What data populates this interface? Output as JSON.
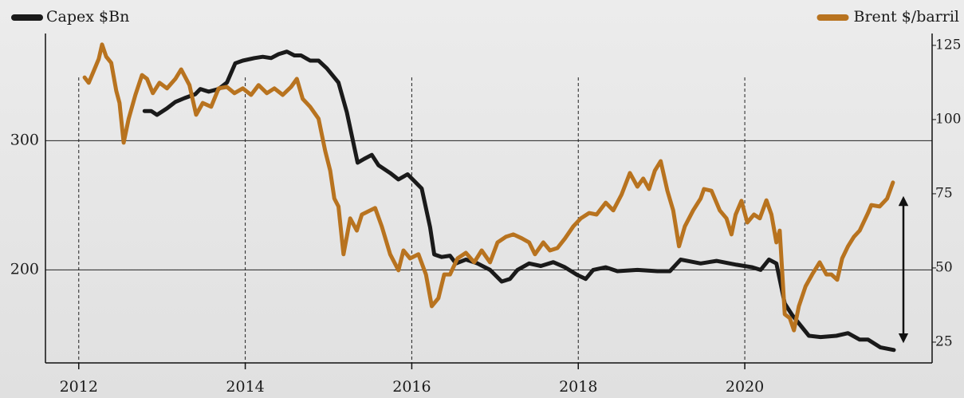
{
  "chart_data": {
    "type": "line",
    "series": [
      {
        "name": "Capex $Bn",
        "color": "#1a1a1a",
        "axis": "y",
        "x": [
          2012.79,
          2012.87,
          2012.94,
          2013.06,
          2013.16,
          2013.27,
          2013.4,
          2013.46,
          2013.56,
          2013.68,
          2013.78,
          2013.88,
          2013.97,
          2014.11,
          2014.21,
          2014.31,
          2014.4,
          2014.5,
          2014.59,
          2014.67,
          2014.78,
          2014.88,
          2014.98,
          2015.12,
          2015.22,
          2015.35,
          2015.43,
          2015.52,
          2015.6,
          2015.74,
          2015.84,
          2015.95,
          2016.12,
          2016.22,
          2016.27,
          2016.36,
          2016.46,
          2016.53,
          2016.65,
          2016.79,
          2016.94,
          2017.08,
          2017.18,
          2017.27,
          2017.41,
          2017.55,
          2017.7,
          2017.84,
          2017.99,
          2018.09,
          2018.18,
          2018.33,
          2018.47,
          2018.71,
          2018.95,
          2019.1,
          2019.23,
          2019.47,
          2019.66,
          2019.9,
          2020.09,
          2020.19,
          2020.29,
          2020.38,
          2020.48,
          2020.57,
          2020.67,
          2020.77,
          2020.91,
          2021.1,
          2021.24,
          2021.38,
          2021.48,
          2021.63,
          2021.79
        ],
        "values": [
          323,
          323,
          320,
          325,
          330,
          333,
          336,
          340,
          338,
          340,
          345,
          360,
          362,
          364,
          365,
          364,
          367,
          369,
          366,
          366,
          362,
          362,
          356,
          345,
          322,
          283,
          286,
          289,
          281,
          275,
          270,
          274,
          263,
          233,
          212,
          210,
          211,
          205,
          208,
          205,
          200,
          191,
          193,
          200,
          205,
          203,
          206,
          202,
          196,
          193,
          200,
          202,
          199,
          200,
          199,
          199,
          208,
          205,
          207,
          204,
          202,
          200,
          208,
          205,
          174,
          165,
          157,
          149,
          148,
          149,
          151,
          146,
          146,
          140,
          138
        ]
      },
      {
        "name": "Brent $/barril",
        "color": "#b8731f",
        "axis": "y2",
        "x": [
          2012.07,
          2012.12,
          2012.18,
          2012.24,
          2012.28,
          2012.33,
          2012.39,
          2012.45,
          2012.49,
          2012.54,
          2012.6,
          2012.68,
          2012.76,
          2012.82,
          2012.89,
          2012.97,
          2013.06,
          2013.16,
          2013.23,
          2013.33,
          2013.41,
          2013.49,
          2013.59,
          2013.68,
          2013.78,
          2013.87,
          2013.97,
          2014.07,
          2014.16,
          2014.26,
          2014.35,
          2014.45,
          2014.55,
          2014.62,
          2014.69,
          2014.78,
          2014.88,
          2014.96,
          2015.02,
          2015.07,
          2015.12,
          2015.18,
          2015.26,
          2015.34,
          2015.4,
          2015.5,
          2015.56,
          2015.64,
          2015.74,
          2015.84,
          2015.9,
          2015.98,
          2016.08,
          2016.17,
          2016.24,
          2016.32,
          2016.39,
          2016.46,
          2016.55,
          2016.65,
          2016.75,
          2016.84,
          2016.94,
          2017.03,
          2017.13,
          2017.22,
          2017.32,
          2017.41,
          2017.48,
          2017.58,
          2017.66,
          2017.75,
          2017.84,
          2017.94,
          2018.03,
          2018.13,
          2018.22,
          2018.33,
          2018.42,
          2018.52,
          2018.62,
          2018.71,
          2018.78,
          2018.85,
          2018.92,
          2018.99,
          2019.07,
          2019.14,
          2019.21,
          2019.28,
          2019.38,
          2019.47,
          2019.51,
          2019.6,
          2019.7,
          2019.78,
          2019.84,
          2019.89,
          2019.96,
          2020.03,
          2020.11,
          2020.18,
          2020.26,
          2020.32,
          2020.38,
          2020.42,
          2020.48,
          2020.54,
          2020.59,
          2020.65,
          2020.73,
          2020.81,
          2020.9,
          2020.98,
          2021.04,
          2021.11,
          2021.17,
          2021.24,
          2021.31,
          2021.38,
          2021.48,
          2021.52,
          2021.62,
          2021.71,
          2021.78
        ],
        "values": [
          114.2,
          112.4,
          116.4,
          120.4,
          125.3,
          121.2,
          119.1,
          109.7,
          105.6,
          92.2,
          100.3,
          108.3,
          115,
          113.7,
          108.9,
          112.4,
          110.5,
          113.7,
          116.9,
          111.6,
          101.6,
          105.6,
          104.3,
          110.5,
          111,
          108.9,
          110.5,
          108.3,
          111.6,
          108.9,
          110.5,
          108.3,
          111,
          113.7,
          107,
          104.3,
          100.3,
          89.5,
          82.8,
          73.4,
          70.7,
          54.6,
          66.7,
          62.6,
          68,
          69.4,
          70.2,
          64,
          54.6,
          49.2,
          55.9,
          53.2,
          54.6,
          47.8,
          37.1,
          39.8,
          47.8,
          47.8,
          53.2,
          55.1,
          51.9,
          55.9,
          51.9,
          58.6,
          60.5,
          61.3,
          60,
          58.6,
          54.6,
          58.6,
          55.9,
          56.7,
          59.9,
          64,
          66.7,
          68.5,
          68,
          72,
          69.4,
          74.7,
          82,
          77.4,
          80.1,
          76.6,
          82.8,
          86,
          76,
          69.4,
          57.3,
          64,
          69.4,
          73.4,
          76.6,
          76,
          69.4,
          66.7,
          61.3,
          68,
          72.6,
          65.3,
          68,
          66.7,
          72.8,
          68,
          58.6,
          62.6,
          34.4,
          33.1,
          29,
          37.1,
          43.8,
          47.8,
          51.9,
          47.8,
          47.8,
          46,
          53.2,
          57.3,
          60.5,
          62.6,
          68.5,
          71.2,
          70.7,
          73.4,
          78.8
        ]
      }
    ],
    "xlim": [
      2011.6,
      2022.25
    ],
    "xticks": [
      2012,
      2014,
      2016,
      2018,
      2020
    ],
    "ylim": [
      128,
      383
    ],
    "yticks": [
      200,
      300
    ],
    "y2lim": [
      18,
      129
    ],
    "y2ticks": [
      25,
      50,
      75,
      100,
      125
    ],
    "grid": true,
    "legend": "top"
  }
}
